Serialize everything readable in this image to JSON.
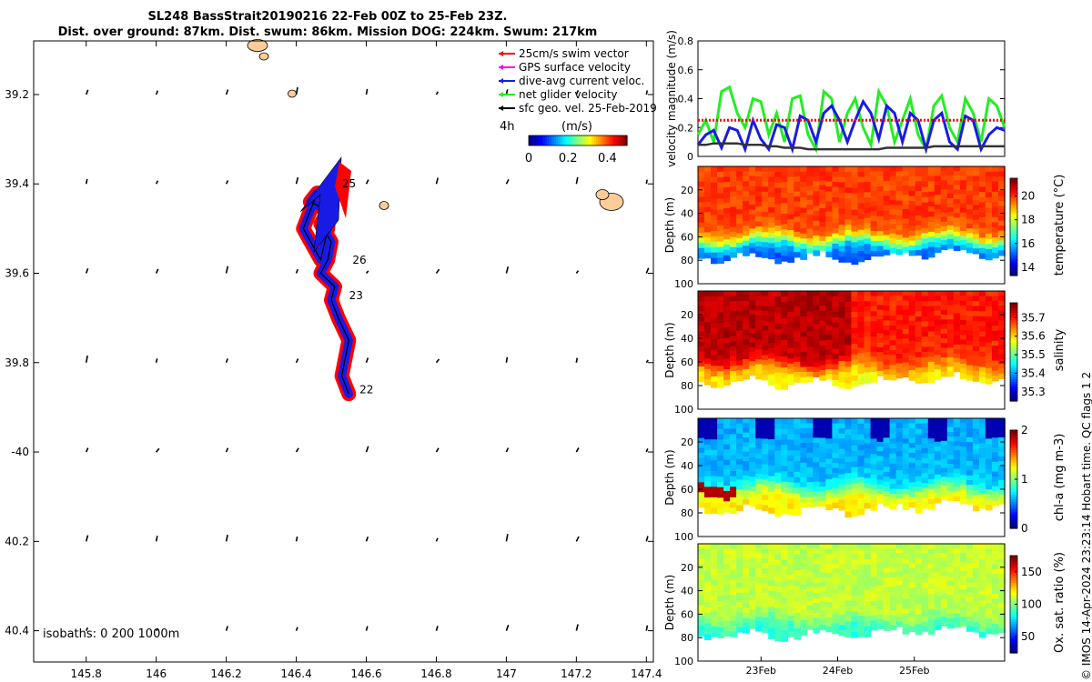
{
  "title_line1": "SL248 BassStrait20190216 22-Feb 00Z to 25-Feb 23Z.",
  "title_line2": "Dist. over ground: 87km. Dist. swum: 86km. Mission DOG: 224km. Swum: 217km",
  "credit": "© IMOS 14-Apr-2024 23:23:14 Hobart time. QC flags 1  2",
  "colors": {
    "red": "#ff0000",
    "magenta": "#ff00ff",
    "blue": "#1a1ae6",
    "green": "#22ee22",
    "black": "#000000",
    "land": "#ffcc99",
    "black_line": "#333333"
  },
  "chart_data": [
    {
      "type": "scatter",
      "name": "map",
      "xlim": [
        145.65,
        147.42
      ],
      "ylim": [
        -40.47,
        -39.08
      ],
      "xticks": [
        145.8,
        146,
        146.2,
        146.4,
        146.6,
        146.8,
        147,
        147.2,
        147.4
      ],
      "xtick_labels": [
        "145.8",
        "146",
        "146.2",
        "146.4",
        "146.6",
        "146.8",
        "147",
        "147.2",
        "147.4"
      ],
      "yticks": [
        -39.2,
        -39.4,
        -39.6,
        -39.8,
        -40,
        -40.2,
        -40.4
      ],
      "ytick_labels": [
        "39.2",
        "39.4",
        "39.6",
        "39.8",
        "-40",
        "40.2",
        "40.4"
      ],
      "legend": [
        {
          "label": "25cm/s swim vector",
          "color": "#ff0000"
        },
        {
          "label": "GPS surface velocity",
          "color": "#ff00ff"
        },
        {
          "label": "dive-avg current veloc.",
          "color": "#1a1ae6"
        },
        {
          "label": "net glider velocity",
          "color": "#22ee22"
        },
        {
          "label": "sfc geo. vel. 25-Feb-2019",
          "color": "#000000"
        }
      ],
      "legend_position": "top-right",
      "colorbar": {
        "label": "4h",
        "units": "(m/s)",
        "ticks": [
          "0",
          "0.2",
          "0.4"
        ],
        "range": [
          0,
          0.5
        ]
      },
      "isobaths_text": "isobaths: 0   200  1000m",
      "track": {
        "lon": [
          146.55,
          146.53,
          146.55,
          146.52,
          146.5,
          146.51,
          146.47,
          146.49,
          146.5,
          146.47,
          146.49,
          146.44,
          146.46,
          146.42,
          146.47,
          146.49,
          146.5
        ],
        "lat": [
          -39.87,
          -39.83,
          -39.75,
          -39.7,
          -39.66,
          -39.63,
          -39.6,
          -39.57,
          -39.53,
          -39.49,
          -39.46,
          -39.44,
          -39.42,
          -39.5,
          -39.57,
          -39.5,
          -39.42
        ]
      },
      "day_labels": [
        {
          "text": "25",
          "lon": 146.51,
          "lat": -39.4
        },
        {
          "text": "26",
          "lon": 146.54,
          "lat": -39.57
        },
        {
          "text": "23",
          "lon": 146.53,
          "lat": -39.65
        },
        {
          "text": "22",
          "lon": 146.56,
          "lat": -39.86
        }
      ]
    },
    {
      "type": "line",
      "name": "velocity",
      "ylabel": "velocity magnitude (m/s)",
      "ylim": [
        0,
        0.8
      ],
      "yticks": [
        "0",
        "0.2",
        "0.4",
        "0.6",
        "0.8"
      ],
      "series": [
        {
          "color": "#22ee22",
          "values": [
            0.15,
            0.25,
            0.1,
            0.45,
            0.48,
            0.3,
            0.2,
            0.4,
            0.38,
            0.15,
            0.3,
            0.1,
            0.4,
            0.42,
            0.15,
            0.05,
            0.45,
            0.4,
            0.1,
            0.3,
            0.4,
            0.2,
            0.08,
            0.45,
            0.35,
            0.1,
            0.25,
            0.4,
            0.15,
            0.05,
            0.35,
            0.42,
            0.2,
            0.1,
            0.4,
            0.3,
            0.1,
            0.4,
            0.35,
            0.2
          ]
        },
        {
          "color": "#1a1ae6",
          "values": [
            0.08,
            0.15,
            0.18,
            0.06,
            0.2,
            0.18,
            0.05,
            0.25,
            0.12,
            0.05,
            0.22,
            0.2,
            0.05,
            0.28,
            0.25,
            0.1,
            0.3,
            0.35,
            0.25,
            0.1,
            0.25,
            0.38,
            0.3,
            0.12,
            0.35,
            0.3,
            0.1,
            0.3,
            0.25,
            0.05,
            0.25,
            0.3,
            0.1,
            0.05,
            0.28,
            0.25,
            0.05,
            0.15,
            0.2,
            0.18
          ]
        },
        {
          "color": "#ff0000",
          "values": [
            0.25,
            0.25,
            0.25,
            0.25,
            0.25,
            0.25,
            0.25,
            0.25,
            0.25,
            0.25,
            0.25,
            0.25,
            0.25,
            0.25,
            0.25,
            0.25,
            0.25,
            0.25,
            0.25,
            0.25,
            0.25,
            0.25,
            0.25,
            0.25,
            0.25,
            0.25,
            0.25,
            0.25,
            0.25,
            0.25,
            0.25,
            0.25,
            0.25,
            0.25,
            0.25,
            0.25,
            0.25,
            0.25,
            0.25,
            0.25
          ]
        },
        {
          "color": "#333333",
          "values": [
            0.08,
            0.08,
            0.09,
            0.09,
            0.09,
            0.09,
            0.08,
            0.08,
            0.08,
            0.07,
            0.07,
            0.06,
            0.06,
            0.06,
            0.05,
            0.05,
            0.05,
            0.05,
            0.05,
            0.05,
            0.05,
            0.05,
            0.05,
            0.05,
            0.06,
            0.06,
            0.06,
            0.06,
            0.06,
            0.06,
            0.07,
            0.07,
            0.07,
            0.07,
            0.07,
            0.07,
            0.07,
            0.07,
            0.07,
            0.07
          ]
        }
      ]
    },
    {
      "type": "heatmap",
      "name": "temperature",
      "ylabel": "Depth (m)",
      "yticks": [
        "20",
        "40",
        "60",
        "80",
        "100"
      ],
      "ylim": [
        0,
        100
      ],
      "colorbar_label": "temperature (°C)",
      "colorbar_ticks": [
        "14",
        "16",
        "18",
        "20"
      ],
      "crange": [
        13.3,
        21.5
      ],
      "surface": 20.0,
      "deep": 15.0,
      "thermocline": 62
    },
    {
      "type": "heatmap",
      "name": "salinity",
      "ylabel": "Depth (m)",
      "yticks": [
        "20",
        "40",
        "60",
        "80",
        "100"
      ],
      "ylim": [
        0,
        100
      ],
      "colorbar_label": "salinity",
      "colorbar_ticks": [
        "35.3",
        "35.4",
        "35.5",
        "35.6",
        "35.7"
      ],
      "crange": [
        35.25,
        35.78
      ],
      "surface": 35.7,
      "deep": 35.58,
      "thermocline": 62
    },
    {
      "type": "heatmap",
      "name": "chla",
      "ylabel": "Depth (m)",
      "yticks": [
        "20",
        "40",
        "60",
        "80",
        "100"
      ],
      "ylim": [
        0,
        100
      ],
      "colorbar_label": "chl-a (mg m-3)",
      "colorbar_ticks": [
        "0",
        "1",
        "2"
      ],
      "crange": [
        0,
        2
      ],
      "surface": 0.6,
      "deep": 1.3,
      "thermocline": 58
    },
    {
      "type": "heatmap",
      "name": "oxygen",
      "ylabel": "Depth (m)",
      "yticks": [
        "20",
        "40",
        "60",
        "80",
        "100"
      ],
      "ylim": [
        0,
        100
      ],
      "colorbar_label": "Ox. sat. ratio (%)",
      "colorbar_ticks": [
        "50",
        "100",
        "150"
      ],
      "crange": [
        25,
        175
      ],
      "surface": 110,
      "deep": 85,
      "thermocline": 65,
      "xtick_labels": [
        "23Feb",
        "24Feb",
        "25Feb"
      ],
      "xticks": [
        1,
        2,
        3
      ],
      "xlim": [
        0,
        4
      ]
    }
  ]
}
